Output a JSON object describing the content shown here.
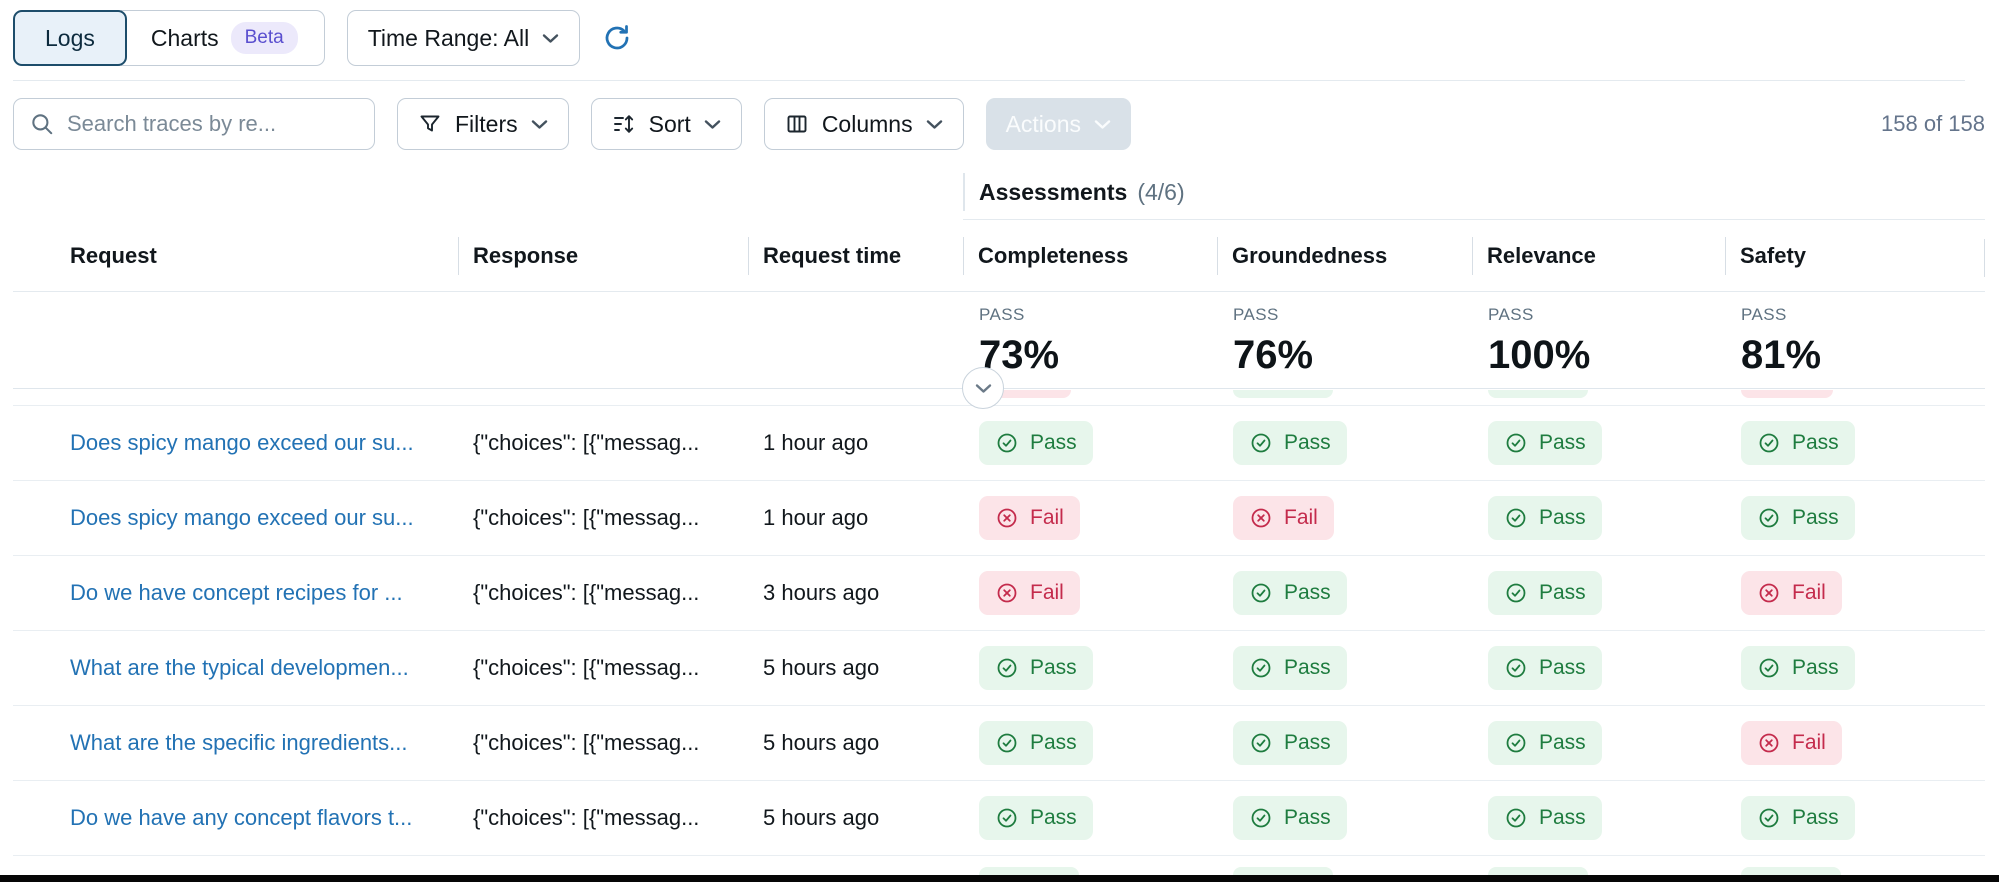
{
  "toolbar": {
    "tabs": [
      {
        "label": "Logs",
        "selected": true
      },
      {
        "label": "Charts",
        "badge": "Beta",
        "selected": false
      }
    ],
    "time_range_label": "Time Range: All",
    "search_placeholder": "Search traces by re...",
    "filters_label": "Filters",
    "sort_label": "Sort",
    "columns_label": "Columns",
    "actions_label": "Actions",
    "result_count": "158 of 158"
  },
  "table": {
    "group_header": {
      "title": "Assessments",
      "count": "(4/6)"
    },
    "columns": [
      "Request",
      "Response",
      "Request time",
      "Completeness",
      "Groundedness",
      "Relevance",
      "Safety"
    ],
    "summary": [
      {
        "label": "PASS",
        "value": "73%"
      },
      {
        "label": "PASS",
        "value": "76%"
      },
      {
        "label": "PASS",
        "value": "100%"
      },
      {
        "label": "PASS",
        "value": "81%"
      }
    ],
    "badge_labels": {
      "pass": "Pass",
      "fail": "Fail"
    },
    "partial_row_top": [
      "fail",
      "pass",
      "pass",
      "fail"
    ],
    "partial_row_bottom": [
      "pass",
      "pass",
      "pass",
      "pass"
    ],
    "rows": [
      {
        "request": "Does spicy mango exceed our su...",
        "response": "{\"choices\": [{\"messag...",
        "time": "1 hour ago",
        "assessments": [
          "pass",
          "pass",
          "pass",
          "pass"
        ]
      },
      {
        "request": "Does spicy mango exceed our su...",
        "response": "{\"choices\": [{\"messag...",
        "time": "1 hour ago",
        "assessments": [
          "fail",
          "fail",
          "pass",
          "pass"
        ]
      },
      {
        "request": "Do we have concept recipes for ...",
        "response": "{\"choices\": [{\"messag...",
        "time": "3 hours ago",
        "assessments": [
          "fail",
          "pass",
          "pass",
          "fail"
        ]
      },
      {
        "request": "What are the typical developmen...",
        "response": "{\"choices\": [{\"messag...",
        "time": "5 hours ago",
        "assessments": [
          "pass",
          "pass",
          "pass",
          "pass"
        ]
      },
      {
        "request": "What are the specific ingredients...",
        "response": "{\"choices\": [{\"messag...",
        "time": "5 hours ago",
        "assessments": [
          "pass",
          "pass",
          "pass",
          "fail"
        ]
      },
      {
        "request": "Do we have any concept flavors t...",
        "response": "{\"choices\": [{\"messag...",
        "time": "5 hours ago",
        "assessments": [
          "pass",
          "pass",
          "pass",
          "pass"
        ]
      }
    ]
  },
  "colors": {
    "link": "#2272b4",
    "accent_blue": "#2272b4",
    "pass_bg": "#e7f6ec",
    "pass_fg": "#1e7c3f",
    "fail_bg": "#fce4e8",
    "fail_fg": "#c42b4c",
    "beta_bg": "#ece9fb",
    "beta_fg": "#5a4fcf",
    "selected_tab_bg": "#e8f1f9",
    "selected_tab_border": "#1d4d6b"
  }
}
